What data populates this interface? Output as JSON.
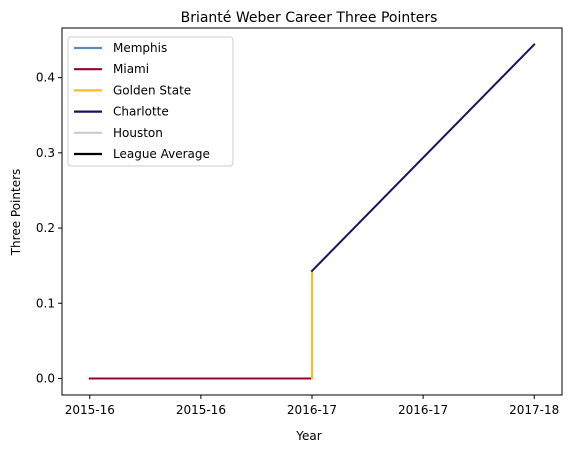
{
  "chart_data": {
    "type": "line",
    "title": "Brianté Weber Career Three Pointers",
    "xlabel": "Year",
    "ylabel": "Three Pointers",
    "x_tick_labels": [
      "2015-16",
      "2015-16",
      "2016-17",
      "2016-17",
      "2017-18",
      "2017-18"
    ],
    "xlim": [
      -0.25,
      4.25
    ],
    "ylim": [
      -0.022,
      0.466
    ],
    "y_ticks": [
      0.0,
      0.1,
      0.2,
      0.3,
      0.4
    ],
    "y_tick_labels": [
      "0.0",
      "0.1",
      "0.2",
      "0.3",
      "0.4"
    ],
    "grid": false,
    "legend_position": "top-left",
    "series": [
      {
        "name": "Memphis",
        "color": "#5d8bbd",
        "points": [
          [
            0,
            0.0
          ],
          [
            1,
            0.0
          ]
        ]
      },
      {
        "name": "Miami",
        "color": "#98002e",
        "points": [
          [
            0,
            0.0
          ],
          [
            1,
            0.0
          ],
          [
            2,
            0.0
          ]
        ]
      },
      {
        "name": "Golden State",
        "color": "#fdb927",
        "points": [
          [
            2,
            0.0
          ],
          [
            2,
            0.143
          ]
        ]
      },
      {
        "name": "Charlotte",
        "color": "#1d1160",
        "points": [
          [
            2,
            0.143
          ],
          [
            4,
            0.444
          ]
        ]
      },
      {
        "name": "Houston",
        "color": "#c4ced4",
        "points": []
      },
      {
        "name": "League Average",
        "color": "#000000",
        "points": []
      }
    ]
  }
}
